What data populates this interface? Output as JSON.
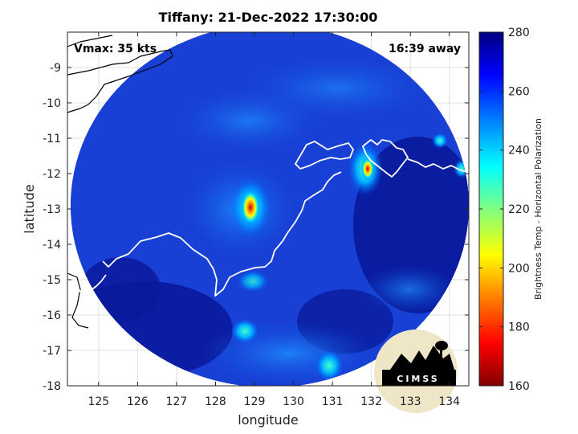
{
  "title": "Tiffany: 21-Dec-2022 17:30:00",
  "vmax_label": "Vmax: 35 kts",
  "away_label": "16:39 away",
  "logo_text": "CIMSS",
  "colors": {
    "background_blue": "#0a1e9c",
    "land_outline": "#ffffff",
    "ocean_outline": "#000000",
    "colormap": [
      "#800000",
      "#ff0000",
      "#ff8000",
      "#ffff00",
      "#80ff80",
      "#00ffff",
      "#0080ff",
      "#0000ff",
      "#000080"
    ]
  },
  "chart_data": {
    "type": "heatmap",
    "title": "Tiffany: 21-Dec-2022 17:30:00",
    "xlabel": "longitude",
    "ylabel": "latitude",
    "xlim": [
      124.2,
      134.5
    ],
    "ylim": [
      -18.0,
      -8.0
    ],
    "xticks": [
      125,
      126,
      127,
      128,
      129,
      130,
      131,
      132,
      133,
      134
    ],
    "yticks": [
      -9,
      -10,
      -11,
      -12,
      -13,
      -14,
      -15,
      -16,
      -17,
      -18
    ],
    "grid": true,
    "colorbar": {
      "label": "Brightness Temp - Horizontal Polarization",
      "min": 160,
      "max": 280,
      "ticks": [
        160,
        180,
        200,
        220,
        240,
        260,
        280
      ]
    }
  }
}
